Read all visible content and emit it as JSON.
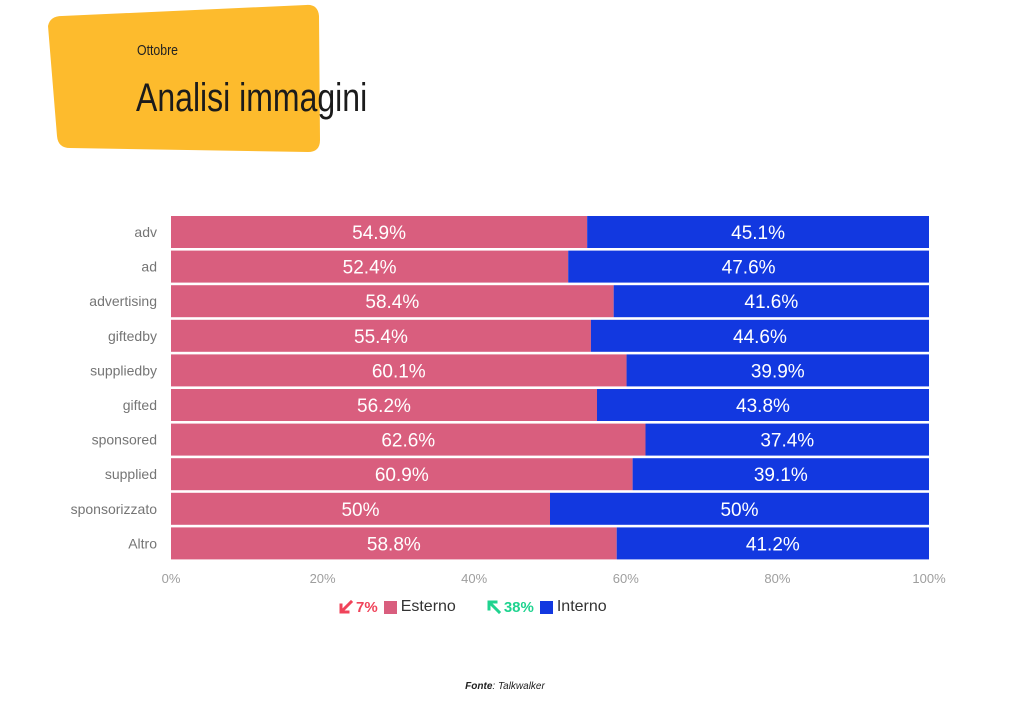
{
  "header": {
    "subtitle": "Ottobre",
    "title": "Analisi immagini",
    "badge_color": "#FDBB2D"
  },
  "chart_data": {
    "type": "bar",
    "orientation": "horizontal",
    "stacked": "percent",
    "categories": [
      "adv",
      "ad",
      "advertising",
      "giftedby",
      "suppliedby",
      "gifted",
      "sponsored",
      "supplied",
      "sponsorizzato",
      "Altro"
    ],
    "series": [
      {
        "name": "Esterno",
        "color": "#D95E7E",
        "values": [
          54.9,
          52.4,
          58.4,
          55.4,
          60.1,
          56.2,
          62.6,
          60.9,
          50,
          58.8
        ],
        "labels": [
          "54.9%",
          "52.4%",
          "58.4%",
          "55.4%",
          "60.1%",
          "56.2%",
          "62.6%",
          "60.9%",
          "50%",
          "58.8%"
        ]
      },
      {
        "name": "Interno",
        "color": "#1238E0",
        "values": [
          45.1,
          47.6,
          41.6,
          44.6,
          39.9,
          43.8,
          37.4,
          39.1,
          50,
          41.2
        ],
        "labels": [
          "45.1%",
          "47.6%",
          "41.6%",
          "44.6%",
          "39.9%",
          "43.8%",
          "37.4%",
          "39.1%",
          "50%",
          "41.2%"
        ]
      }
    ],
    "xlim": [
      0,
      100
    ],
    "xticks": [
      "0%",
      "20%",
      "40%",
      "60%",
      "80%",
      "100%"
    ],
    "grid": false,
    "legend_position": "bottom"
  },
  "legend": [
    {
      "change": "7%",
      "direction": "down",
      "change_color": "#F0435A",
      "label": "Esterno",
      "color": "#D95E7E"
    },
    {
      "change": "38%",
      "direction": "up",
      "change_color": "#1FD38F",
      "label": "Interno",
      "color": "#1238E0"
    }
  ],
  "source": {
    "label": "Fonte",
    "value": ": Talkwalker"
  }
}
